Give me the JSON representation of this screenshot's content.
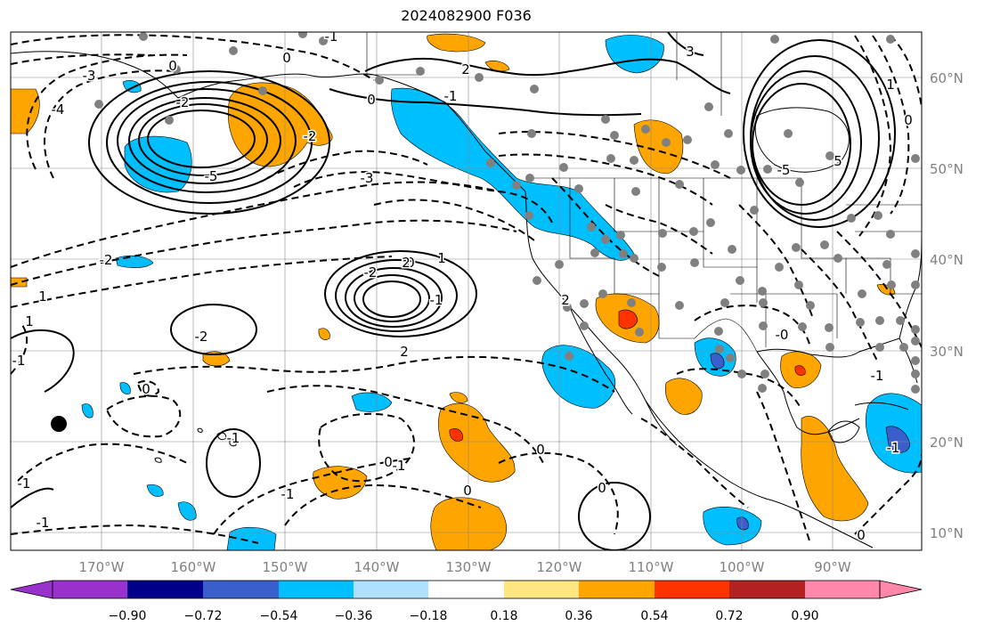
{
  "title": "2024082900 F036",
  "map": {
    "lon_labels": [
      "170°W",
      "160°W",
      "150°W",
      "140°W",
      "130°W",
      "120°W",
      "110°W",
      "100°W",
      "90°W"
    ],
    "lat_labels": [
      "60°N",
      "50°N",
      "40°N",
      "30°N",
      "20°N",
      "10°N"
    ],
    "contour_labels": [
      "-1",
      "0",
      "0",
      "3",
      "-2",
      "-3",
      "-4",
      "-5",
      "-2",
      "2",
      "0",
      "-1",
      "1",
      "-2",
      "0",
      "-3",
      "5",
      "-5",
      "1",
      "-2",
      "2",
      "-2",
      "-1",
      "2",
      "1",
      "-1",
      "2",
      "0",
      "-1",
      "-1",
      "0",
      "-1",
      "0",
      "0",
      "-1",
      "0",
      "-1",
      "-1",
      "0",
      "-0",
      "1",
      "-1",
      "0"
    ]
  },
  "colorbar": {
    "ticks": [
      "−0.90",
      "−0.72",
      "−0.54",
      "−0.36",
      "−0.18",
      "0.18",
      "0.36",
      "0.54",
      "0.72",
      "0.90"
    ],
    "colors": [
      "#9932CC",
      "#00008B",
      "#3A5FCD",
      "#00BFFF",
      "#B0E0FF",
      "#FFFFFF",
      "#FFE680",
      "#FFA500",
      "#FF3300",
      "#B22222",
      "#FF88AA"
    ]
  },
  "colors": {
    "grid": "#888888",
    "axis_text": "#808080",
    "station": "#808080",
    "contour": "#000000"
  }
}
